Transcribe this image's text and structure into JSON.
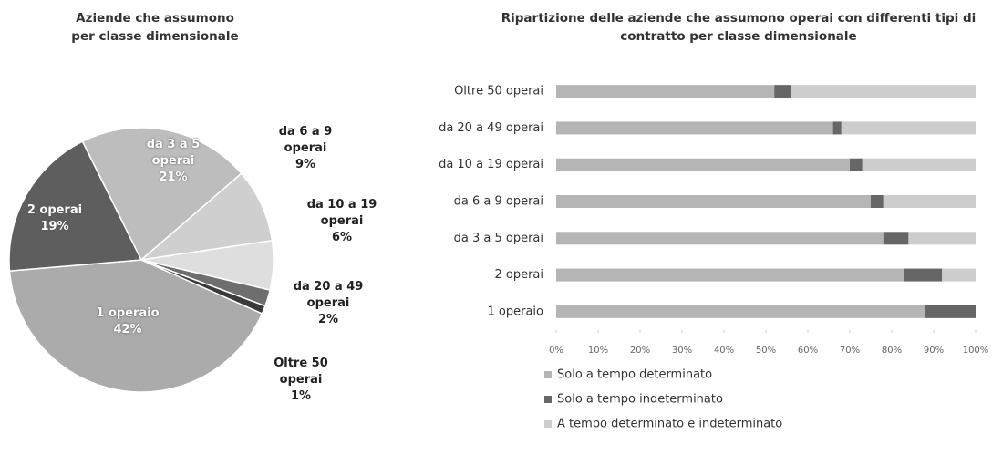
{
  "chart_data": [
    {
      "type": "pie",
      "title": "Aziende che assumono per classe dimensionale",
      "categories": [
        "1 operaio",
        "2 operai",
        "da 3 a 5 operai",
        "da 6 a 9 operai",
        "da 10 a 19 operai",
        "da 20 a 49 operai",
        "Oltre 50 operai"
      ],
      "values": [
        42,
        19,
        21,
        9,
        6,
        2,
        1
      ],
      "value_labels": [
        "42%",
        "19%",
        "21%",
        "9%",
        "6%",
        "2%",
        "1%"
      ],
      "colors": [
        "#ababab",
        "#5e5e5e",
        "#bdbdbd",
        "#cfcfcf",
        "#dedede",
        "#6e6e6e",
        "#3a3a3a"
      ]
    },
    {
      "type": "bar",
      "orientation": "horizontal",
      "stacked": true,
      "title": "Ripartizione delle aziende che assumono operai con differenti tipi di contratto per classe dimensionale",
      "categories": [
        "Oltre 50 operai",
        "da 20 a 49 operai",
        "da 10 a 19 operai",
        "da 6 a 9 operai",
        "da 3 a 5 operai",
        "2 operai",
        "1 operaio"
      ],
      "series": [
        {
          "name": "Solo a tempo determinato",
          "color": "#b5b5b5",
          "values": [
            52,
            66,
            70,
            75,
            78,
            83,
            88
          ]
        },
        {
          "name": "Solo a tempo indeterminato",
          "color": "#666666",
          "values": [
            4,
            2,
            3,
            3,
            6,
            9,
            12
          ]
        },
        {
          "name": "A tempo determinato e indeterminato",
          "color": "#cdcdcd",
          "values": [
            44,
            32,
            27,
            22,
            16,
            8,
            0
          ]
        }
      ],
      "xlim": [
        0,
        100
      ],
      "xticks": [
        {
          "value": 0,
          "label": "0%"
        },
        {
          "value": 10,
          "label": "10%"
        },
        {
          "value": 20,
          "label": "20%"
        },
        {
          "value": 30,
          "label": "30%"
        },
        {
          "value": 40,
          "label": "40%"
        },
        {
          "value": 50,
          "label": "50%"
        },
        {
          "value": 60,
          "label": "60%"
        },
        {
          "value": 70,
          "label": "70%"
        },
        {
          "value": 80,
          "label": "80%"
        },
        {
          "value": 90,
          "label": "90%"
        },
        {
          "value": 100,
          "label": "100%"
        }
      ]
    }
  ]
}
